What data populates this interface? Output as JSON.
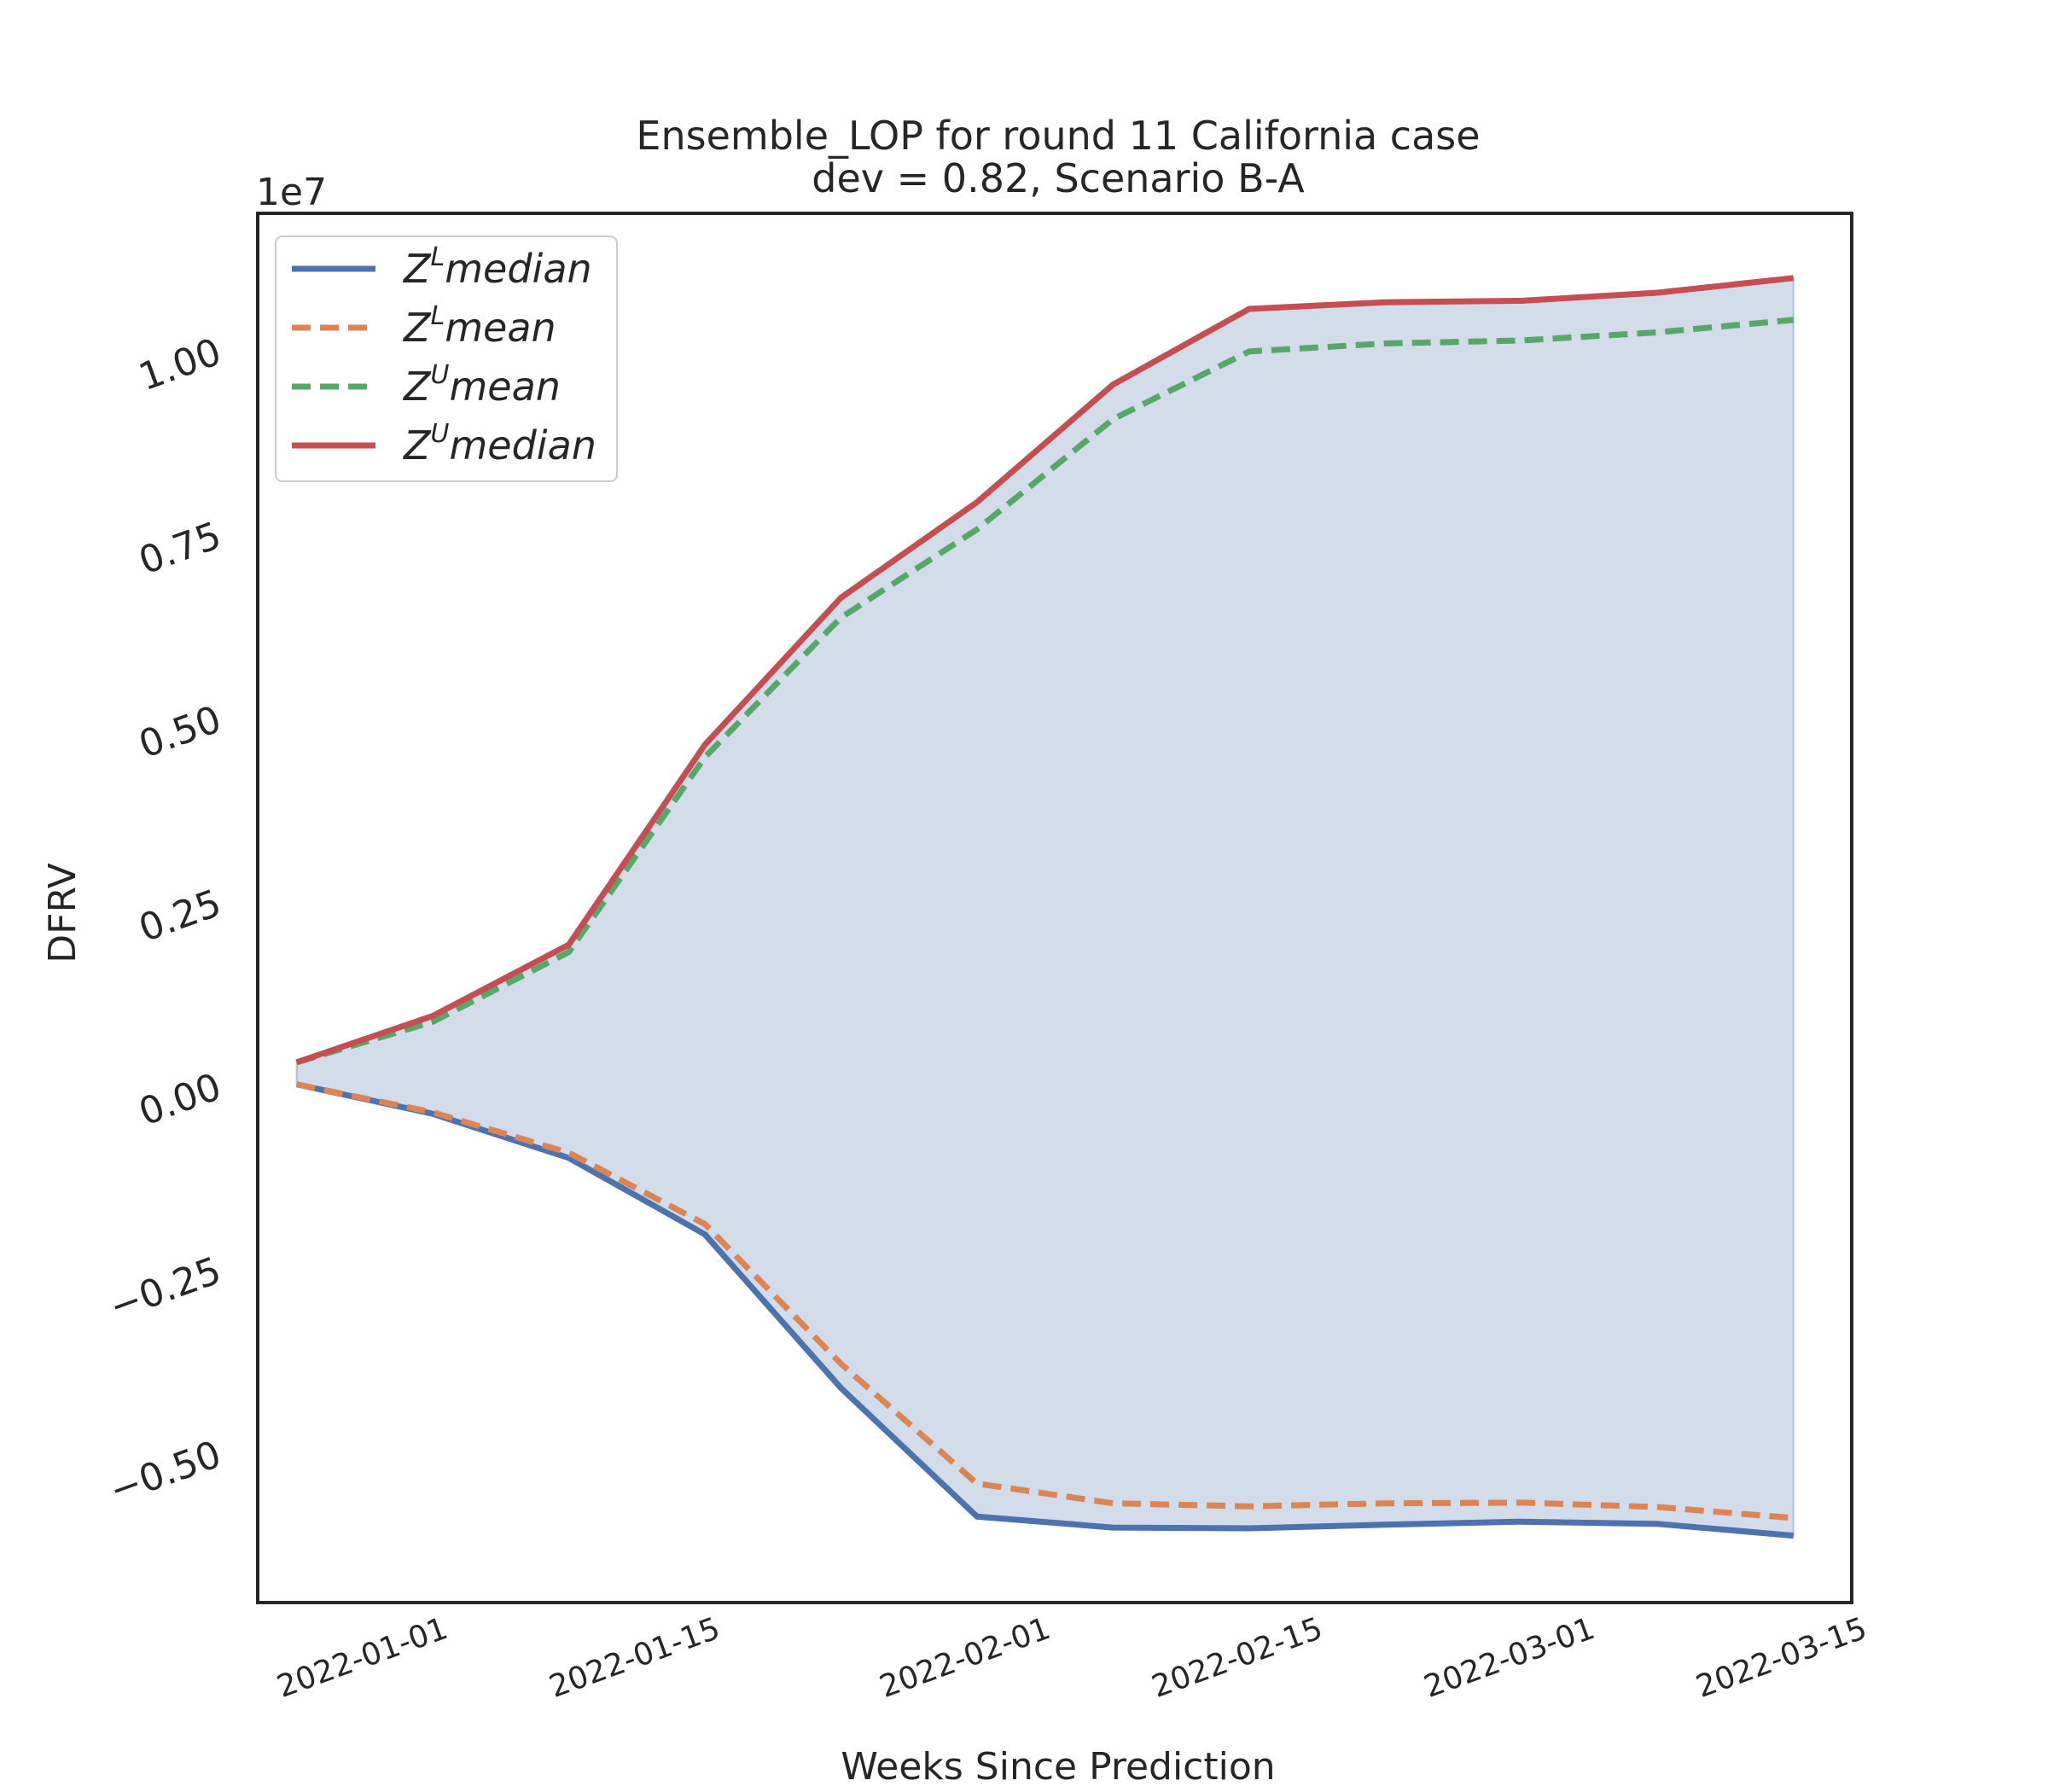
{
  "chart_data": {
    "type": "line",
    "title_line1": "Ensemble_LOP for round 11 California case",
    "title_line2": "dev = 0.82, Scenario B-A",
    "xlabel": "Weeks Since Prediction",
    "ylabel": "DFRV",
    "y_offset_text": "1e7",
    "x_tick_labels": [
      "2022-01-01",
      "2022-01-15",
      "2022-02-01",
      "2022-02-15",
      "2022-03-01",
      "2022-03-15"
    ],
    "y_tick_labels": [
      "−0.50",
      "−0.25",
      "0.00",
      "0.25",
      "0.50",
      "0.75",
      "1.00"
    ],
    "y_ticks": [
      -0.5,
      -0.25,
      0.0,
      0.25,
      0.5,
      0.75,
      1.0
    ],
    "xlim": [
      "2021-12-23",
      "2022-03-15"
    ],
    "ylim": [
      -0.705,
      1.185
    ],
    "y_scale": 10000000,
    "x_dates": [
      "2021-12-25",
      "2022-01-01",
      "2022-01-08",
      "2022-01-15",
      "2022-01-22",
      "2022-01-29",
      "2022-02-05",
      "2022-02-12",
      "2022-02-19",
      "2022-02-26",
      "2022-03-05",
      "2022-03-12"
    ],
    "series": [
      {
        "label_base": "Z",
        "label_sup": "L",
        "label_rest": "median",
        "color": "#4C72B0",
        "dash": "solid",
        "values": [
          0.0,
          -0.04,
          -0.1,
          -0.204,
          -0.413,
          -0.588,
          -0.603,
          -0.604,
          -0.599,
          -0.595,
          -0.598,
          -0.614
        ]
      },
      {
        "label_base": "Z",
        "label_sup": "L",
        "label_rest": "mean",
        "color": "#DD8452",
        "dash": "dashed",
        "values": [
          0.0,
          -0.038,
          -0.093,
          -0.19,
          -0.38,
          -0.543,
          -0.57,
          -0.574,
          -0.57,
          -0.569,
          -0.575,
          -0.59
        ]
      },
      {
        "label_base": "Z",
        "label_sup": "U",
        "label_rest": "mean",
        "color": "#55A868",
        "dash": "dashed",
        "values": [
          0.03,
          0.085,
          0.18,
          0.445,
          0.635,
          0.755,
          0.905,
          0.997,
          1.008,
          1.012,
          1.023,
          1.04
        ]
      },
      {
        "label_base": "Z",
        "label_sup": "U",
        "label_rest": "median",
        "color": "#C44E52",
        "dash": "solid",
        "values": [
          0.03,
          0.093,
          0.19,
          0.462,
          0.662,
          0.792,
          0.952,
          1.055,
          1.064,
          1.066,
          1.077,
          1.097
        ]
      }
    ],
    "fill": {
      "between": [
        "Z^L median",
        "Z^U median"
      ],
      "color": "#4C72B0",
      "opacity": 0.25
    },
    "grid": false,
    "legend_position": "upper left"
  }
}
